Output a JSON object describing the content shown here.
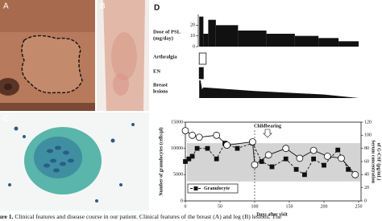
{
  "panels": {
    "A": "A",
    "B": "B",
    "C": "C",
    "D": "D"
  },
  "caption": {
    "lead": "ure 1.",
    "text": "Clinical features and disease course in our patient. Clinical features of the breast (A) and leg (B) lesions. The"
  },
  "chart_data": [
    {
      "type": "timeline",
      "xlim": [
        0,
        250
      ],
      "dose": {
        "label": [
          "Dose of PSL",
          "(mg/day)"
        ],
        "ylim": [
          0,
          30
        ],
        "yticks": [
          0,
          10,
          20
        ],
        "edges": [
          20,
          26,
          33,
          44,
          76,
          117,
          158,
          192,
          221,
          250
        ],
        "values": [
          28,
          12,
          25,
          20,
          15,
          12,
          10,
          8,
          5
        ]
      },
      "arthralgia": {
        "label": [
          "Arthralgia"
        ],
        "interval": [
          20,
          30
        ]
      },
      "en": {
        "label": [
          "EN"
        ],
        "interval": [
          20,
          26
        ]
      },
      "breast": {
        "label": [
          "Breast",
          "lesions"
        ],
        "ylim": [
          0,
          10
        ],
        "x": [
          20,
          22,
          24,
          26,
          100,
          200,
          250
        ],
        "values": [
          10,
          10,
          5,
          6,
          4,
          2,
          0
        ]
      }
    },
    {
      "type": "line",
      "xlabel": "Days after visit",
      "ylabel": "Number of granulocytes (cells/μl)",
      "y2label": [
        "Serum concentration",
        "of G-CSF (pg/mL)"
      ],
      "xlim": [
        0,
        250
      ],
      "xticks": [
        0,
        50,
        100,
        150,
        200,
        250
      ],
      "ylim": [
        0,
        15000
      ],
      "yticks": [
        0,
        5000,
        10000,
        15000
      ],
      "y2lim": [
        0,
        120
      ],
      "y2ticks": [
        0,
        20,
        40,
        60,
        80,
        100,
        120
      ],
      "band": [
        3700,
        11000
      ],
      "annotation": {
        "text": "Childbearing",
        "x": 100
      },
      "series": [
        {
          "name": "Granulocyte",
          "color": "#111111",
          "x": [
            0,
            5,
            10,
            17,
            32,
            45,
            57,
            75,
            97,
            110,
            125,
            145,
            160,
            172,
            185,
            200,
            220,
            235,
            245
          ],
          "values": [
            7500,
            8000,
            8500,
            10000,
            10000,
            8000,
            11000,
            10000,
            11000,
            7500,
            6500,
            8000,
            6000,
            5000,
            8000,
            6800,
            9700,
            6000,
            5000
          ]
        },
        {
          "axis": "y2",
          "color": "#111111",
          "x": [
            0,
            10,
            20,
            45,
            60,
            97,
            100,
            120,
            145,
            165,
            185,
            205,
            225,
            245
          ],
          "values": [
            107,
            100,
            97,
            100,
            85,
            90,
            55,
            70,
            80,
            65,
            77,
            68,
            65,
            40
          ]
        }
      ]
    }
  ]
}
